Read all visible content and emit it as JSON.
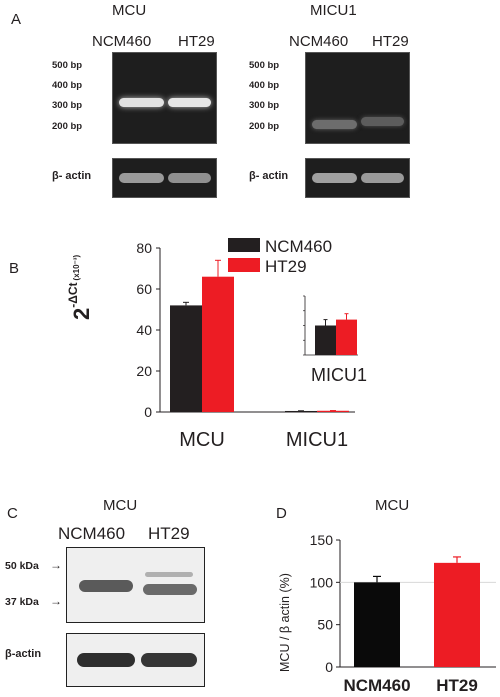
{
  "panelA": {
    "letter": "A",
    "left": {
      "title": "MCU",
      "lanes": [
        "NCM460",
        "HT29"
      ],
      "ladder": [
        "500 bp",
        "400 bp",
        "300 bp",
        "200 bp"
      ],
      "loading": "β- actin"
    },
    "right": {
      "title": "MICU1",
      "lanes": [
        "NCM460",
        "HT29"
      ],
      "ladder": [
        "500 bp",
        "400 bp",
        "300 bp",
        "200 bp"
      ],
      "loading": "β- actin"
    }
  },
  "panelB": {
    "letter": "B",
    "ylabel_main": "2",
    "ylabel_sup": "-ΔCt",
    "ylabel_unit": "(x10⁻³)",
    "inset_label": "MICU1",
    "colors": {
      "NCM460": "#231f20",
      "HT29": "#ed1c24"
    }
  },
  "panelC": {
    "letter": "C",
    "title": "MCU",
    "lanes": [
      "NCM460",
      "HT29"
    ],
    "markers": [
      "50 kDa",
      "37 kDa"
    ],
    "loading": "β-actin"
  },
  "panelD": {
    "letter": "D",
    "ylabel": "MCU / β actin (%)"
  },
  "chart_data": [
    {
      "type": "bar",
      "panel": "B",
      "categories": [
        "MCU",
        "MICU1"
      ],
      "series": [
        {
          "name": "NCM460",
          "values": [
            52,
            0.5
          ],
          "errors": [
            1.5,
            0.1
          ]
        },
        {
          "name": "HT29",
          "values": [
            66,
            0.6
          ],
          "errors": [
            8,
            0.1
          ]
        }
      ],
      "ylim": [
        0,
        80
      ],
      "yticks": [
        "0",
        "20",
        "40",
        "60",
        "80"
      ],
      "legend": "top-right"
    },
    {
      "type": "bar",
      "panel": "D",
      "title": "MCU",
      "categories": [
        "NCM460",
        "HT29"
      ],
      "values": [
        100,
        123
      ],
      "errors": [
        7,
        7
      ],
      "colors": [
        "#0a0a0a",
        "#ed1c24"
      ],
      "ylim": [
        0,
        150
      ],
      "yticks": [
        "0",
        "50",
        "100",
        "150"
      ],
      "reference_line": 100
    }
  ]
}
